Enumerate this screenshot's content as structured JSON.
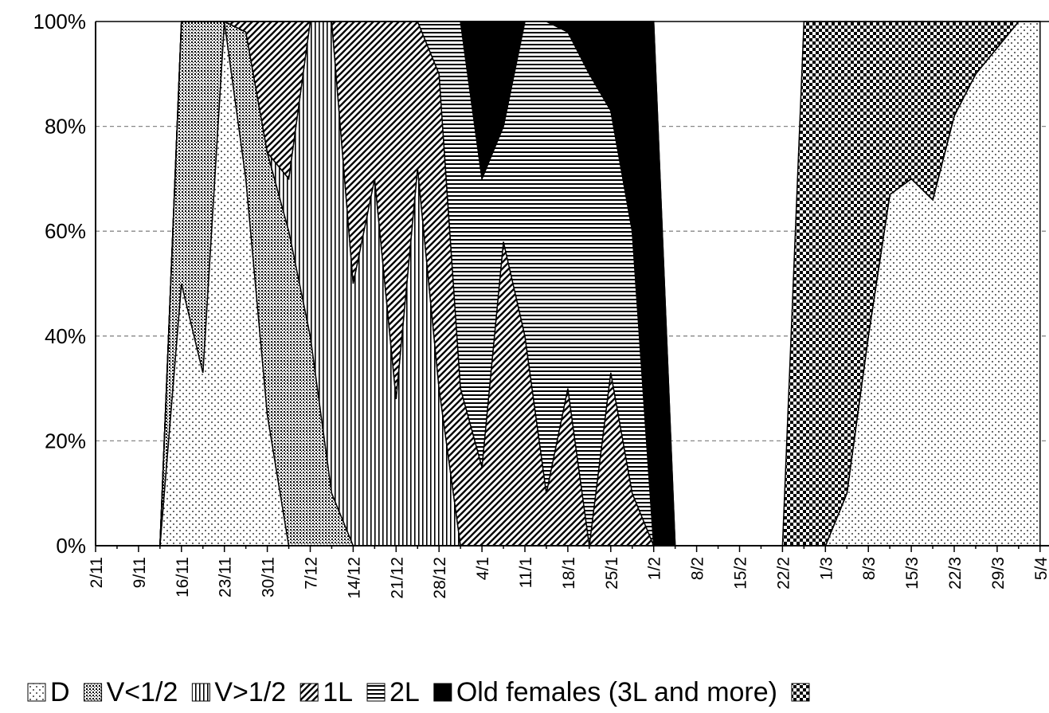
{
  "chart_data": {
    "type": "stacked-area",
    "categories": [
      "2/11",
      null,
      "9/11",
      null,
      "16/11",
      null,
      "23/11",
      null,
      "30/11",
      null,
      "7/12",
      null,
      "14/12",
      null,
      "21/12",
      null,
      "28/12",
      null,
      "4/1",
      null,
      "11/1",
      null,
      "18/1",
      null,
      "25/1",
      null,
      "1/2",
      null,
      "8/2",
      null,
      "15/2",
      null,
      "22/2",
      null,
      "1/3",
      null,
      "8/3",
      null,
      "15/3",
      null,
      "22/3",
      null,
      "29/3",
      null,
      "5/4"
    ],
    "series": [
      {
        "name": "D",
        "color": "#000000",
        "values": [
          0,
          0,
          0,
          0,
          50,
          33,
          100,
          70,
          25,
          0,
          0,
          0,
          0,
          0,
          0,
          0,
          0,
          0,
          0,
          0,
          0,
          0,
          0,
          0,
          0,
          0,
          0,
          0,
          0,
          0,
          0,
          0,
          0,
          0,
          0,
          10,
          40,
          67,
          70,
          66,
          82,
          90,
          95,
          100,
          100
        ]
      },
      {
        "name": "V<1/2",
        "color": "#000000",
        "values": [
          0,
          0,
          0,
          0,
          50,
          67,
          0,
          28,
          50,
          60,
          40,
          10,
          0,
          0,
          0,
          0,
          0,
          0,
          0,
          0,
          0,
          0,
          0,
          0,
          0,
          0,
          0,
          0,
          0,
          0,
          0,
          0,
          0,
          0,
          0,
          0,
          0,
          0,
          0,
          0,
          0,
          0,
          0,
          0,
          0
        ]
      },
      {
        "name": "V>1/2",
        "color": "#000000",
        "values": [
          0,
          0,
          0,
          0,
          0,
          0,
          0,
          0,
          0,
          10,
          60,
          90,
          50,
          70,
          28,
          72,
          30,
          0,
          0,
          0,
          0,
          0,
          0,
          0,
          0,
          0,
          0,
          0,
          0,
          0,
          0,
          0,
          0,
          0,
          0,
          0,
          0,
          0,
          0,
          0,
          0,
          0,
          0,
          0,
          0
        ]
      },
      {
        "name": "1L",
        "color": "#000000",
        "values": [
          0,
          0,
          0,
          0,
          0,
          0,
          0,
          2,
          25,
          30,
          0,
          0,
          50,
          30,
          72,
          28,
          60,
          30,
          15,
          58,
          40,
          10,
          30,
          0,
          33,
          10,
          0,
          0,
          0,
          0,
          0,
          0,
          0,
          0,
          0,
          0,
          0,
          0,
          0,
          0,
          0,
          0,
          0,
          0,
          0
        ]
      },
      {
        "name": "2L",
        "color": "#000000",
        "values": [
          0,
          0,
          0,
          0,
          0,
          0,
          0,
          0,
          0,
          0,
          0,
          0,
          0,
          0,
          0,
          0,
          10,
          70,
          55,
          22,
          60,
          90,
          68,
          90,
          50,
          50,
          0,
          0,
          0,
          0,
          0,
          0,
          0,
          0,
          0,
          0,
          0,
          0,
          0,
          0,
          0,
          0,
          0,
          0,
          0
        ]
      },
      {
        "name": "Old females (3L and more)",
        "color": "#000000",
        "values": [
          0,
          0,
          0,
          0,
          0,
          0,
          0,
          0,
          0,
          0,
          0,
          0,
          0,
          0,
          0,
          0,
          0,
          0,
          30,
          20,
          0,
          0,
          2,
          10,
          17,
          40,
          100,
          0,
          0,
          0,
          0,
          0,
          0,
          0,
          0,
          0,
          0,
          0,
          0,
          0,
          0,
          0,
          0,
          0,
          0
        ]
      },
      {
        "name": null,
        "color": "#000000",
        "values": [
          0,
          0,
          0,
          0,
          0,
          0,
          0,
          0,
          0,
          0,
          0,
          0,
          0,
          0,
          0,
          0,
          0,
          0,
          0,
          0,
          0,
          0,
          0,
          0,
          0,
          0,
          0,
          0,
          0,
          0,
          0,
          0,
          0,
          100,
          100,
          90,
          60,
          33,
          30,
          34,
          18,
          10,
          5,
          0,
          0
        ]
      }
    ],
    "ylim": [
      0,
      100
    ],
    "yticks": [
      {
        "value": 0,
        "label": "0%"
      },
      {
        "value": 20,
        "label": "20%"
      },
      {
        "value": 40,
        "label": "40%"
      },
      {
        "value": 60,
        "label": "60%"
      },
      {
        "value": 80,
        "label": "80%"
      },
      {
        "value": 100,
        "label": "100%"
      }
    ],
    "grid": true
  }
}
